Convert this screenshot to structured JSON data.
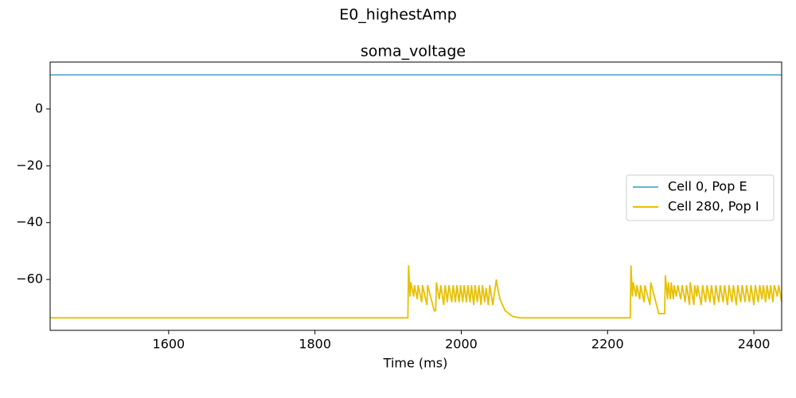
{
  "chart_data": {
    "type": "line",
    "suptitle": "E0_highestAmp",
    "title": "soma_voltage",
    "xlabel": "Time (ms)",
    "xlim": [
      1438,
      2438
    ],
    "ylim": [
      -77.9,
      16.5
    ],
    "xticks": [
      1600,
      1800,
      2000,
      2200,
      2400
    ],
    "yticks": [
      0,
      {
        "value": -20,
        "label": "−20"
      },
      {
        "value": -40,
        "label": "−40"
      },
      {
        "value": -60,
        "label": "−60"
      }
    ],
    "legend": "center right",
    "series": [
      {
        "name": "Cell 0, Pop E",
        "color": "#67b3d4",
        "x": [
          1438,
          2438
        ],
        "values": [
          12,
          12
        ]
      },
      {
        "name": "Cell 280, Pop I",
        "color": "#e8c000",
        "x": [
          1438,
          1927,
          1928,
          1930,
          1931,
          1935,
          1936,
          1940,
          1941,
          1946,
          1947,
          1953,
          1954,
          1963,
          1965,
          1966,
          1970,
          1972,
          1976,
          1978,
          1981,
          1983,
          1987,
          1989,
          1992,
          1994,
          1997,
          1999,
          2002,
          2004,
          2007,
          2009,
          2012,
          2014,
          2017,
          2019,
          2022,
          2024,
          2027,
          2029,
          2032,
          2034,
          2037,
          2039,
          2043,
          2048,
          2049,
          2053,
          2060,
          2070,
          2080,
          2231,
          2232,
          2234,
          2235,
          2239,
          2240,
          2244,
          2245,
          2250,
          2251,
          2258,
          2259,
          2270,
          2278,
          2279,
          2282,
          2283,
          2286,
          2287,
          2290,
          2291,
          2294,
          2296,
          2300,
          2302,
          2306,
          2308,
          2312,
          2313,
          2318,
          2319,
          2322,
          2323,
          2328,
          2330,
          2334,
          2336,
          2340,
          2342,
          2346,
          2348,
          2352,
          2354,
          2358,
          2360,
          2364,
          2366,
          2370,
          2372,
          2376,
          2378,
          2382,
          2384,
          2388,
          2390,
          2394,
          2396,
          2400,
          2402,
          2406,
          2408,
          2411,
          2413,
          2416,
          2418,
          2421,
          2423,
          2426,
          2428,
          2432,
          2434,
          2438
        ],
        "values": [
          -73.5,
          -73.5,
          -55,
          -66,
          -61,
          -66,
          -62,
          -67,
          -62,
          -68,
          -62,
          -69,
          -62,
          -71,
          -71,
          -61,
          -67,
          -62,
          -69,
          -62,
          -68,
          -62,
          -68,
          -62,
          -68,
          -62,
          -68,
          -62,
          -68,
          -62,
          -68,
          -62,
          -68,
          -62,
          -69,
          -62,
          -68,
          -62,
          -69,
          -62,
          -68,
          -63,
          -69,
          -62,
          -69,
          -60,
          -62,
          -67,
          -71,
          -73,
          -73.5,
          -73.5,
          -55,
          -66,
          -61,
          -66,
          -62,
          -67,
          -62,
          -68,
          -62,
          -69,
          -61,
          -72,
          -72,
          -58.5,
          -67,
          -61,
          -67,
          -61,
          -67,
          -62,
          -66,
          -62,
          -67,
          -62,
          -68,
          -62,
          -69,
          -61,
          -69,
          -62,
          -66,
          -62,
          -69,
          -62,
          -68,
          -62,
          -68,
          -62,
          -69,
          -62,
          -68,
          -62,
          -68,
          -62,
          -69,
          -62,
          -68,
          -62,
          -69,
          -62,
          -68,
          -62,
          -68,
          -62,
          -68,
          -62,
          -69,
          -62,
          -68,
          -62,
          -67,
          -62,
          -68,
          -62,
          -67,
          -62,
          -68,
          -62,
          -66,
          -62,
          -68
        ]
      }
    ]
  }
}
